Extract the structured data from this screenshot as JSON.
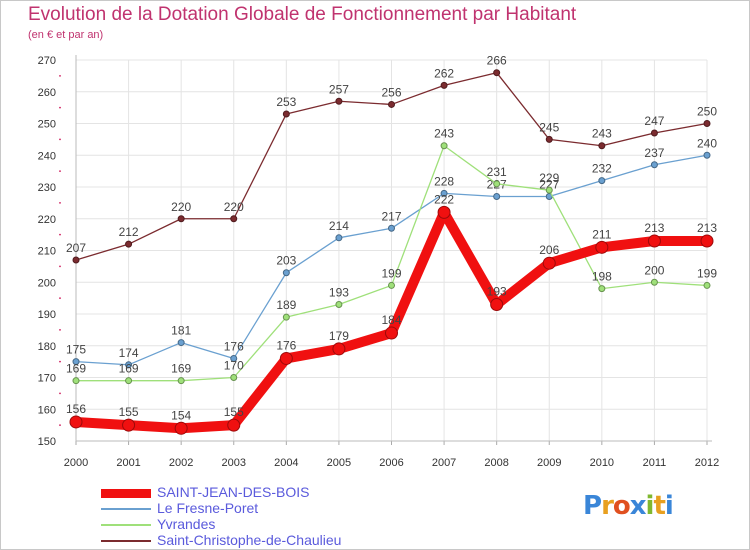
{
  "chart_data": {
    "type": "line",
    "title": "Evolution de la Dotation Globale de Fonctionnement par Habitant",
    "subtitle": "(en € et par an)",
    "xlabel": "",
    "ylabel": "",
    "x": [
      "2000",
      "2001",
      "2002",
      "2003",
      "2004",
      "2005",
      "2006",
      "2007",
      "2008",
      "2009",
      "2010",
      "2011",
      "2012"
    ],
    "yticks": [
      150,
      160,
      170,
      180,
      190,
      200,
      210,
      220,
      230,
      240,
      250,
      260,
      270
    ],
    "ylim": [
      150,
      270
    ],
    "grid": true,
    "legend": "bottom-left",
    "series": [
      {
        "name": "Saint-Christophe-de-Chaulieu",
        "color": "#7b2b2f",
        "values": [
          207,
          212,
          220,
          220,
          253,
          257,
          256,
          262,
          266,
          245,
          243,
          247,
          250
        ]
      },
      {
        "name": "Le Fresne-Poret",
        "color": "#6aa0d0",
        "values": [
          175,
          174,
          181,
          176,
          203,
          214,
          217,
          228,
          227,
          227,
          232,
          237,
          240
        ]
      },
      {
        "name": "Yvrandes",
        "color": "#9fe07a",
        "values": [
          169,
          169,
          169,
          170,
          189,
          193,
          199,
          243,
          231,
          229,
          198,
          200,
          199
        ]
      },
      {
        "name": "SAINT-JEAN-DES-BOIS",
        "color": "#f01010",
        "values": [
          156,
          155,
          154,
          155,
          176,
          179,
          184,
          222,
          193,
          206,
          211,
          213,
          213
        ]
      }
    ],
    "legend_order": [
      "SAINT-JEAN-DES-BOIS",
      "Le Fresne-Poret",
      "Yvrandes",
      "Saint-Christophe-de-Chaulieu"
    ]
  },
  "logo": {
    "letters": [
      "P",
      "r",
      "o",
      "x",
      "i",
      "t",
      "i"
    ],
    "colors": [
      "#3a86d8",
      "#e8a020",
      "#e05020",
      "#3a86d8",
      "#80b830",
      "#e8a020",
      "#3a86d8"
    ]
  }
}
